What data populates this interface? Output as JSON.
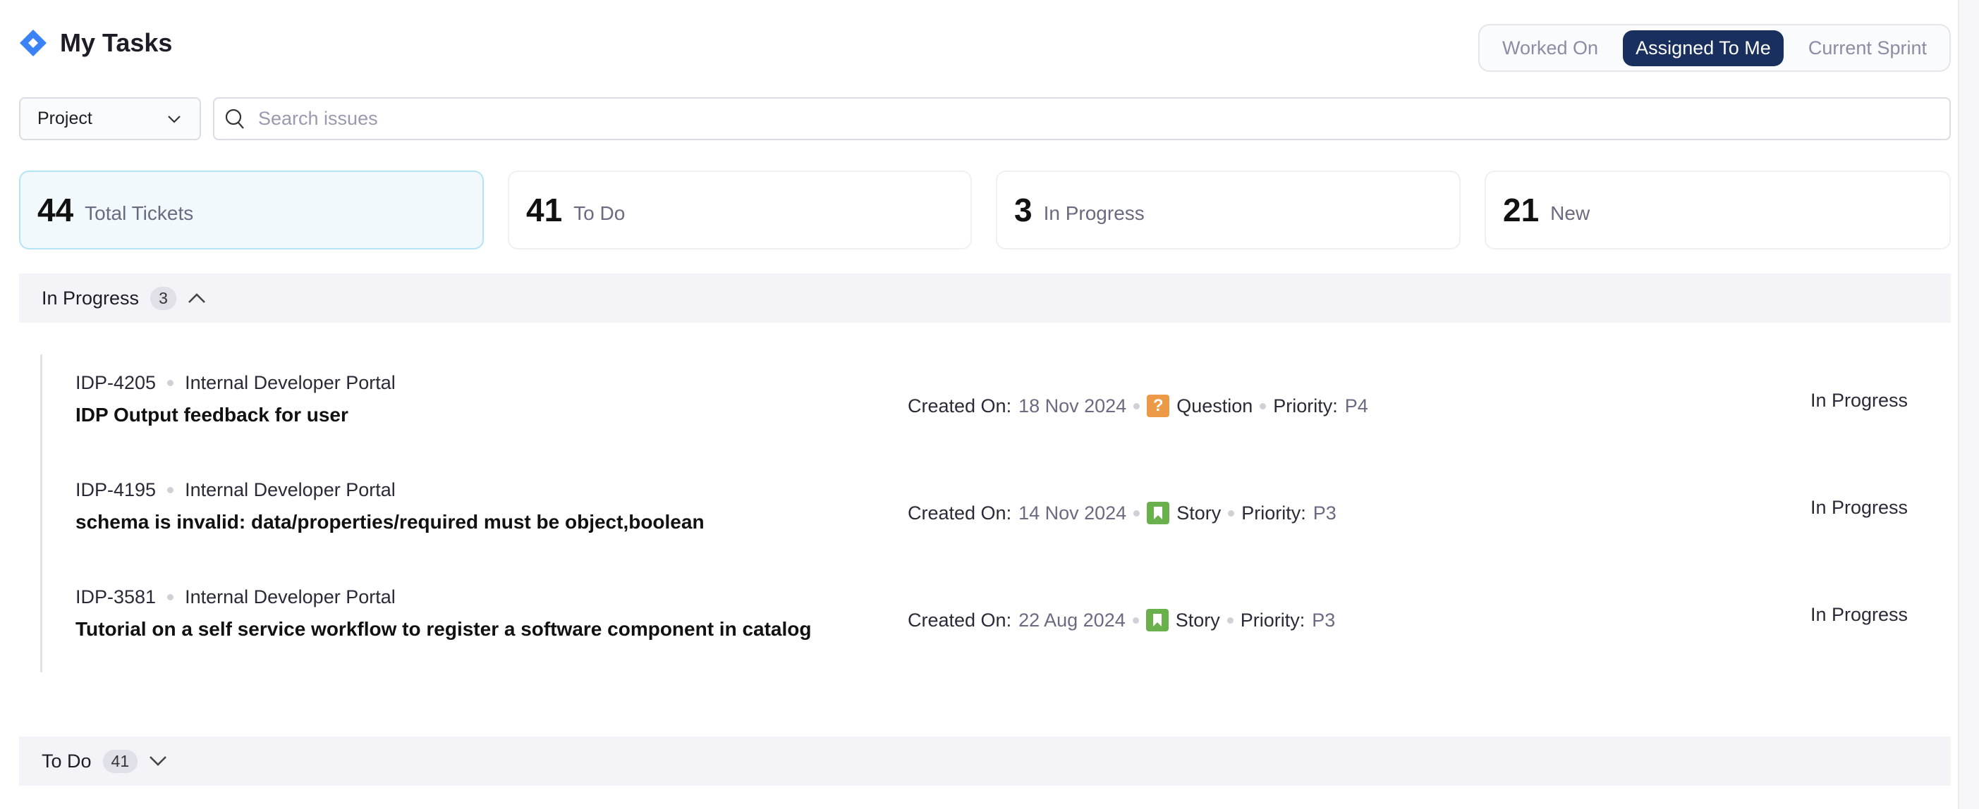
{
  "header": {
    "title": "My Tasks",
    "logo": "jira-diamond-icon"
  },
  "tabs": [
    {
      "label": "Worked On",
      "active": false
    },
    {
      "label": "Assigned To Me",
      "active": true
    },
    {
      "label": "Current Sprint",
      "active": false
    }
  ],
  "filters": {
    "project_label": "Project",
    "search_placeholder": "Search issues"
  },
  "stats": [
    {
      "value": "44",
      "label": "Total Tickets"
    },
    {
      "value": "41",
      "label": "To Do"
    },
    {
      "value": "3",
      "label": "In Progress"
    },
    {
      "value": "21",
      "label": "New"
    }
  ],
  "groups": {
    "in_progress": {
      "label": "In Progress",
      "count": "3",
      "expanded": true
    },
    "todo": {
      "label": "To Do",
      "count": "41",
      "expanded": false
    }
  },
  "meta_labels": {
    "created": "Created On:",
    "priority": "Priority:"
  },
  "issues": [
    {
      "key": "IDP-4205",
      "project": "Internal Developer Portal",
      "title": "IDP Output feedback for user",
      "created": "18 Nov 2024",
      "type": "Question",
      "type_color": "#ec9a48",
      "priority": "P4",
      "status": "In Progress"
    },
    {
      "key": "IDP-4195",
      "project": "Internal Developer Portal",
      "title": "schema is invalid: data/properties/required must be object,boolean",
      "created": "14 Nov 2024",
      "type": "Story",
      "type_color": "#6ab04c",
      "priority": "P3",
      "status": "In Progress"
    },
    {
      "key": "IDP-3581",
      "project": "Internal Developer Portal",
      "title": "Tutorial on a self service workflow to register a software component in catalog",
      "created": "22 Aug 2024",
      "type": "Story",
      "type_color": "#6ab04c",
      "priority": "P3",
      "status": "In Progress"
    }
  ]
}
